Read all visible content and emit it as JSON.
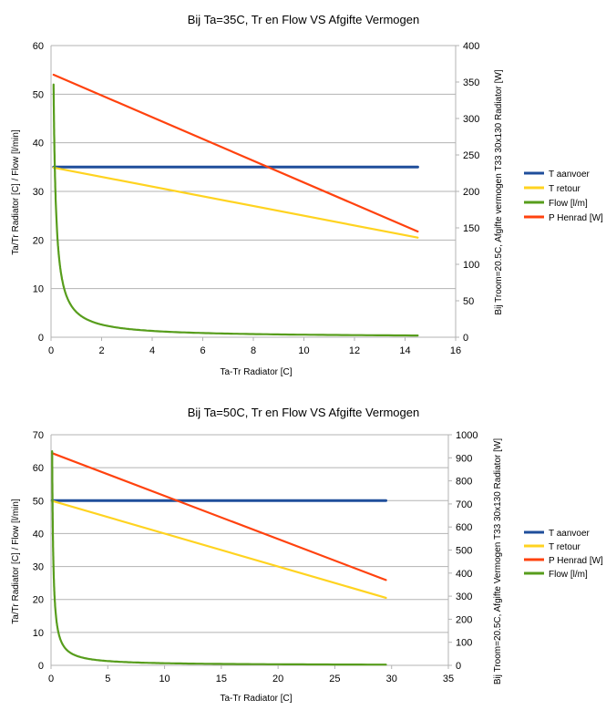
{
  "chart_data": [
    {
      "type": "line",
      "title": "Bij Ta=35C, Tr en Flow VS Afgifte Vermogen",
      "xlabel": "Ta-Tr Radiator [C]",
      "ylabel": "Ta/Tr Radiator [C] / Flow [l/min]",
      "y2label": "Bij Troom=20.5C, Afgifte vermogen T33 30x130 Radiator [W]",
      "xlim": [
        0,
        16
      ],
      "ylim": [
        0,
        60
      ],
      "y2lim": [
        0,
        400
      ],
      "xticks": [
        "0",
        "2",
        "4",
        "6",
        "8",
        "10",
        "12",
        "14",
        "16"
      ],
      "yticks": [
        "0",
        "10",
        "20",
        "30",
        "40",
        "50",
        "60"
      ],
      "y2ticks": [
        "0",
        "50",
        "100",
        "150",
        "200",
        "250",
        "300",
        "350",
        "400"
      ],
      "legend_position": "right",
      "series": [
        {
          "name": "T aanvoer",
          "color": "#1f4e9b",
          "axis": "left",
          "x": [
            0.1,
            14.5
          ],
          "y": [
            35,
            35
          ]
        },
        {
          "name": "T retour",
          "color": "#ffd320",
          "axis": "left",
          "x": [
            0.1,
            14.5
          ],
          "y": [
            34.9,
            20.5
          ]
        },
        {
          "name": "Flow [l/m]",
          "color": "#579d1c",
          "axis": "left",
          "flow_k": 5.2,
          "x": [
            0.1,
            14.5
          ]
        },
        {
          "name": "P Henrad [W]",
          "color": "#ff420e",
          "axis": "right",
          "x": [
            0.1,
            14.5
          ],
          "y": [
            360,
            145
          ]
        }
      ]
    },
    {
      "type": "line",
      "title": "Bij Ta=50C, Tr en Flow VS Afgifte Vermogen",
      "xlabel": "Ta-Tr Radiator [C]",
      "ylabel": "Ta/Tr Radiator [C] / Flow [l/min]",
      "y2label": "Bij Troom=20.5C, Afgifte Vermogen T33 30x130 Radiator [W]",
      "xlim": [
        0,
        35
      ],
      "ylim": [
        0,
        70
      ],
      "y2lim": [
        0,
        1000
      ],
      "xticks": [
        "0",
        "5",
        "10",
        "15",
        "20",
        "25",
        "30",
        "35"
      ],
      "yticks": [
        "0",
        "10",
        "20",
        "30",
        "40",
        "50",
        "60",
        "70"
      ],
      "y2ticks": [
        "0",
        "100",
        "200",
        "300",
        "400",
        "500",
        "600",
        "700",
        "800",
        "900",
        "1000"
      ],
      "legend_position": "right",
      "series": [
        {
          "name": "T aanvoer",
          "color": "#1f4e9b",
          "axis": "left",
          "x": [
            0.1,
            29.5
          ],
          "y": [
            50,
            50
          ]
        },
        {
          "name": "T retour",
          "color": "#ffd320",
          "axis": "left",
          "x": [
            0.1,
            29.5
          ],
          "y": [
            49.9,
            20.5
          ]
        },
        {
          "name": "P Henrad [W]",
          "color": "#ff420e",
          "axis": "right",
          "x": [
            0.1,
            29.5
          ],
          "y": [
            920,
            370
          ]
        },
        {
          "name": "Flow [l/m]",
          "color": "#579d1c",
          "axis": "left",
          "flow_k": 6.5,
          "x": [
            0.1,
            29.5
          ]
        }
      ]
    }
  ]
}
